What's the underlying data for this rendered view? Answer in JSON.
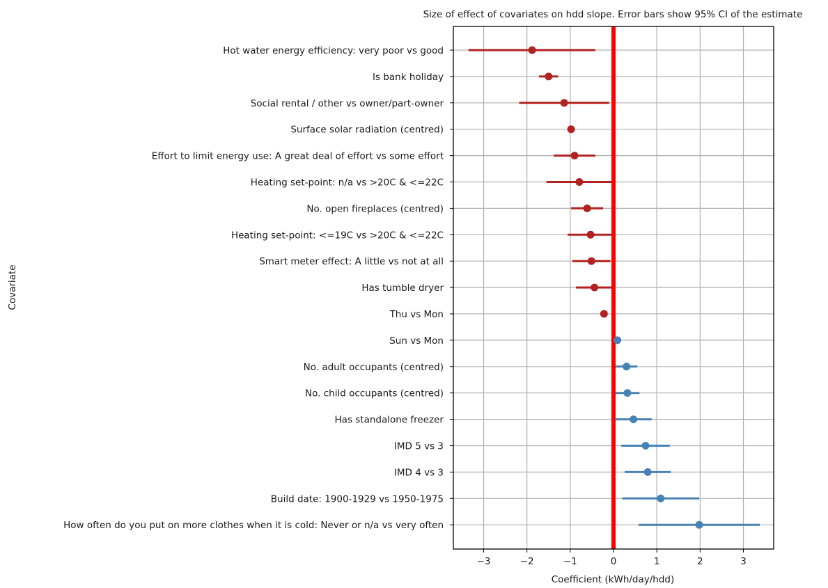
{
  "chart_data": {
    "type": "scatter",
    "title": "Size of effect of covariates on hdd slope. Error bars show 95% CI of the estimate",
    "xlabel": "Coefficient (kWh/day/hdd)",
    "ylabel": "Covariate",
    "xlim": [
      -3.7,
      3.7
    ],
    "xticks": [
      -3,
      -2,
      -1,
      0,
      1,
      2,
      3
    ],
    "xtick_labels": [
      "−3",
      "−2",
      "−1",
      "0",
      "1",
      "2",
      "3"
    ],
    "grid": true,
    "reference_line": {
      "x": 0,
      "color": "#ff0000"
    },
    "colors": {
      "negative": "#b22222",
      "positive": "#4682b4"
    },
    "covariates": [
      {
        "label": "Hot water energy efficiency: very poor vs good",
        "estimate": -1.88,
        "ci_low": -3.35,
        "ci_high": -0.42
      },
      {
        "label": "Is bank holiday",
        "estimate": -1.5,
        "ci_low": -1.72,
        "ci_high": -1.28
      },
      {
        "label": "Social rental / other  vs owner/part-owner",
        "estimate": -1.14,
        "ci_low": -2.18,
        "ci_high": -0.1
      },
      {
        "label": "Surface solar radiation (centred)",
        "estimate": -0.98,
        "ci_low": -0.98,
        "ci_high": -0.98
      },
      {
        "label": "Effort to limit energy use: A great deal of effort vs some effort",
        "estimate": -0.9,
        "ci_low": -1.38,
        "ci_high": -0.42
      },
      {
        "label": "Heating set-point: n/a vs >20C & <=22C",
        "estimate": -0.79,
        "ci_low": -1.55,
        "ci_high": -0.03
      },
      {
        "label": "No. open fireplaces (centred)",
        "estimate": -0.61,
        "ci_low": -0.98,
        "ci_high": -0.24
      },
      {
        "label": "Heating set-point: <=19C vs >20C & <=22C",
        "estimate": -0.53,
        "ci_low": -1.06,
        "ci_high": 0.0
      },
      {
        "label": "Smart meter effect: A little vs not at all",
        "estimate": -0.51,
        "ci_low": -0.95,
        "ci_high": -0.07
      },
      {
        "label": "Has tumble dryer",
        "estimate": -0.44,
        "ci_low": -0.87,
        "ci_high": -0.01
      },
      {
        "label": "Thu vs Mon",
        "estimate": -0.22,
        "ci_low": -0.22,
        "ci_high": -0.22
      },
      {
        "label": "Sun vs Mon",
        "estimate": 0.09,
        "ci_low": 0.09,
        "ci_high": 0.09
      },
      {
        "label": "No. adult occupants (centred)",
        "estimate": 0.3,
        "ci_low": 0.05,
        "ci_high": 0.55
      },
      {
        "label": "No. child occupants (centred)",
        "estimate": 0.32,
        "ci_low": 0.05,
        "ci_high": 0.6
      },
      {
        "label": "Has standalone freezer",
        "estimate": 0.46,
        "ci_low": 0.04,
        "ci_high": 0.88
      },
      {
        "label": "IMD 5 vs 3",
        "estimate": 0.74,
        "ci_low": 0.18,
        "ci_high": 1.3
      },
      {
        "label": "IMD 4 vs 3",
        "estimate": 0.79,
        "ci_low": 0.26,
        "ci_high": 1.32
      },
      {
        "label": "Build date: 1900-1929 vs 1950-1975",
        "estimate": 1.09,
        "ci_low": 0.2,
        "ci_high": 1.98
      },
      {
        "label": "How often do you put on more clothes when it is cold: Never or n/a vs very often",
        "estimate": 1.98,
        "ci_low": 0.58,
        "ci_high": 3.38
      }
    ]
  }
}
